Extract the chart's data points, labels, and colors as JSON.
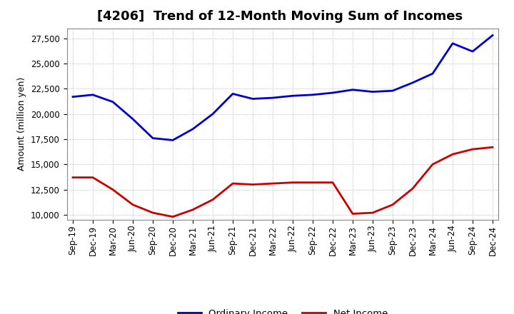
{
  "title": "[4206]  Trend of 12-Month Moving Sum of Incomes",
  "ylabel": "Amount (million yen)",
  "background_color": "#ffffff",
  "plot_bg_color": "#ffffff",
  "grid_color": "#aaaaaa",
  "x_labels": [
    "Sep-19",
    "Dec-19",
    "Mar-20",
    "Jun-20",
    "Sep-20",
    "Dec-20",
    "Mar-21",
    "Jun-21",
    "Sep-21",
    "Dec-21",
    "Mar-22",
    "Jun-22",
    "Sep-22",
    "Dec-22",
    "Mar-23",
    "Jun-23",
    "Sep-23",
    "Dec-23",
    "Mar-24",
    "Jun-24",
    "Sep-24",
    "Dec-24"
  ],
  "ordinary_income": [
    21700,
    21900,
    21200,
    19500,
    17600,
    17400,
    18500,
    20000,
    22000,
    21500,
    21600,
    21800,
    21900,
    22100,
    22400,
    22200,
    22300,
    23100,
    24000,
    27000,
    26200,
    27800
  ],
  "net_income": [
    13700,
    13700,
    12500,
    11000,
    10200,
    9800,
    10500,
    11500,
    13100,
    13000,
    13100,
    13200,
    13200,
    13200,
    10100,
    10200,
    11000,
    12600,
    15000,
    16000,
    16500,
    16700
  ],
  "ordinary_income_color": "#0000cc",
  "net_income_color": "#cc0000",
  "ylim": [
    9500,
    28500
  ],
  "yticks": [
    10000,
    12500,
    15000,
    17500,
    20000,
    22500,
    25000,
    27500
  ],
  "line_width": 2.0,
  "title_fontsize": 13,
  "tick_fontsize": 8.5,
  "ylabel_fontsize": 9
}
